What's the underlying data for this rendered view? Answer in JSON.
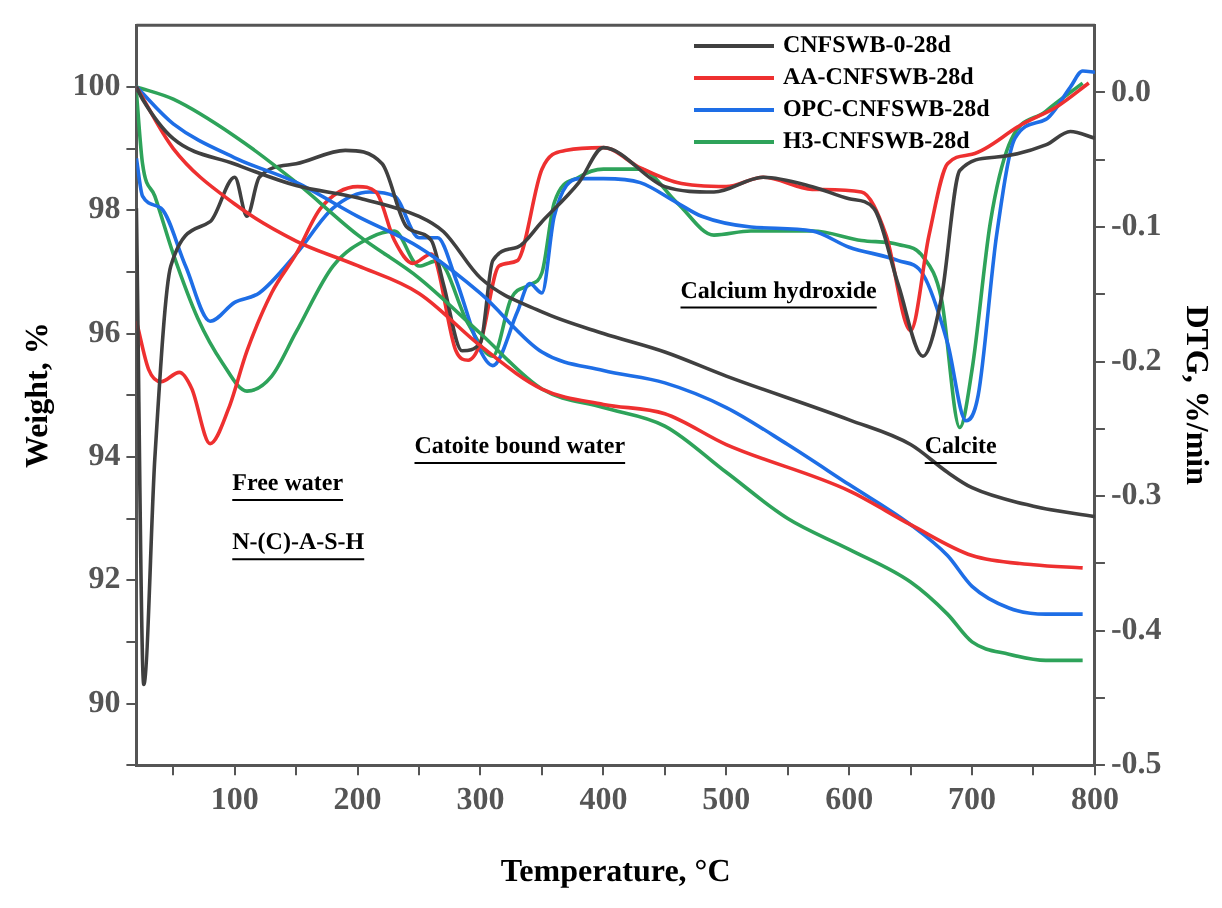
{
  "chart_data": {
    "type": "line",
    "xlabel": "Temperature, °C",
    "ylabel": "Weight, %",
    "y2label": "DTG, %/min",
    "xlim": [
      20,
      800
    ],
    "xticks": [
      {
        "value": 50,
        "label": null
      },
      100,
      {
        "value": 150,
        "label": null
      },
      200,
      {
        "value": 250,
        "label": null
      },
      300,
      {
        "value": 350,
        "label": null
      },
      400,
      {
        "value": 450,
        "label": null
      },
      500,
      {
        "value": 550,
        "label": null
      },
      600,
      {
        "value": 650,
        "label": null
      },
      700,
      {
        "value": 750,
        "label": null
      },
      800
    ],
    "ylim": [
      89,
      101
    ],
    "yticks": [
      {
        "value": 89,
        "label": null
      },
      90,
      {
        "value": 91,
        "label": null
      },
      92,
      {
        "value": 93,
        "label": null
      },
      94,
      {
        "value": 95,
        "label": null
      },
      96,
      {
        "value": 97,
        "label": null
      },
      98,
      {
        "value": 99,
        "label": null
      },
      100
    ],
    "y2lim": [
      -0.5,
      0.05
    ],
    "y2ticks": [
      {
        "value": -0.5,
        "label": "-0.5"
      },
      {
        "value": -0.45,
        "label": null
      },
      {
        "value": -0.4,
        "label": "-0.4"
      },
      {
        "value": -0.35,
        "label": null
      },
      {
        "value": -0.3,
        "label": "-0.3"
      },
      {
        "value": -0.25,
        "label": null
      },
      {
        "value": -0.2,
        "label": "-0.2"
      },
      {
        "value": -0.15,
        "label": null
      },
      {
        "value": -0.1,
        "label": "-0.1"
      },
      {
        "value": -0.05,
        "label": null
      },
      {
        "value": 0,
        "label": "0.0"
      }
    ],
    "grid": false,
    "legend": "top right",
    "marker": "none",
    "line_style": "solid",
    "series": [
      {
        "name": "CNFSWB-0-28d",
        "color": "#404040",
        "x": [
          20,
          25,
          50,
          100,
          150,
          200,
          250,
          270,
          300,
          350,
          400,
          450,
          500,
          600,
          650,
          680,
          700,
          750,
          800
        ],
        "values": [
          100,
          99.8,
          99.16,
          98.75,
          98.4,
          98.2,
          97.9,
          97.65,
          96.9,
          96.35,
          96.0,
          95.7,
          95.31,
          94.6,
          94.2,
          93.75,
          93.5,
          93.2,
          93.03
        ]
      },
      {
        "name": "AA-CNFSWB-28d",
        "color": "#ee3030",
        "x": [
          20,
          50,
          100,
          150,
          200,
          250,
          300,
          350,
          400,
          450,
          500,
          600,
          650,
          700,
          750,
          790
        ],
        "values": [
          100,
          99.0,
          98.1,
          97.5,
          97.1,
          96.65,
          95.8,
          95.1,
          94.85,
          94.7,
          94.2,
          93.45,
          92.9,
          92.4,
          92.25,
          92.2
        ]
      },
      {
        "name": "OPC-CNFSWB-28d",
        "color": "#1e6ee6",
        "x": [
          20,
          50,
          100,
          150,
          200,
          250,
          300,
          350,
          400,
          450,
          500,
          550,
          600,
          650,
          680,
          700,
          730,
          760,
          790
        ],
        "values": [
          100,
          99.4,
          98.85,
          98.45,
          97.9,
          97.4,
          96.65,
          95.7,
          95.4,
          95.2,
          94.8,
          94.2,
          93.55,
          92.9,
          92.4,
          91.9,
          91.55,
          91.45,
          91.45
        ]
      },
      {
        "name": "H3-CNFSWB-28d",
        "color": "#2ea35a",
        "x": [
          20,
          50,
          100,
          150,
          200,
          250,
          300,
          350,
          400,
          450,
          500,
          550,
          600,
          650,
          680,
          700,
          730,
          760,
          790
        ],
        "values": [
          100,
          99.8,
          99.2,
          98.45,
          97.6,
          96.9,
          96.0,
          95.1,
          94.8,
          94.5,
          93.75,
          93.0,
          92.5,
          91.97,
          91.45,
          91.0,
          90.8,
          90.7,
          90.7
        ]
      },
      {
        "color": "#404040",
        "axis": "y2",
        "x": [
          20,
          26,
          35,
          48,
          80,
          100,
          110,
          120,
          150,
          190,
          220,
          240,
          260,
          270,
          285,
          300,
          310,
          330,
          350,
          380,
          400,
          450,
          490,
          530,
          570,
          600,
          620,
          640,
          660,
          675,
          690,
          720,
          760,
          780,
          800
        ],
        "values": [
          -0.086,
          -0.44,
          -0.272,
          -0.129,
          -0.096,
          -0.063,
          -0.092,
          -0.063,
          -0.053,
          -0.043,
          -0.053,
          -0.1,
          -0.11,
          -0.143,
          -0.192,
          -0.186,
          -0.125,
          -0.115,
          -0.096,
          -0.067,
          -0.041,
          -0.07,
          -0.074,
          -0.063,
          -0.07,
          -0.079,
          -0.086,
          -0.143,
          -0.196,
          -0.153,
          -0.058,
          -0.048,
          -0.039,
          -0.029,
          -0.034
        ]
      },
      {
        "color": "#ee3030",
        "axis": "y2",
        "x": [
          20,
          30,
          40,
          55,
          65,
          80,
          95,
          110,
          130,
          150,
          170,
          200,
          215,
          230,
          245,
          260,
          280,
          290,
          300,
          315,
          330,
          350,
          370,
          400,
          430,
          460,
          500,
          530,
          570,
          610,
          630,
          650,
          665,
          680,
          700,
          740,
          770,
          795
        ],
        "values": [
          -0.17,
          -0.206,
          -0.215,
          -0.208,
          -0.22,
          -0.261,
          -0.235,
          -0.192,
          -0.149,
          -0.12,
          -0.086,
          -0.07,
          -0.074,
          -0.11,
          -0.127,
          -0.12,
          -0.192,
          -0.199,
          -0.186,
          -0.129,
          -0.125,
          -0.057,
          -0.043,
          -0.041,
          -0.056,
          -0.067,
          -0.07,
          -0.063,
          -0.072,
          -0.074,
          -0.106,
          -0.177,
          -0.106,
          -0.053,
          -0.046,
          -0.024,
          -0.01,
          0.007
        ]
      },
      {
        "color": "#1e6ee6",
        "axis": "y2",
        "x": [
          20,
          25,
          40,
          60,
          80,
          100,
          120,
          150,
          180,
          210,
          230,
          250,
          265,
          280,
          300,
          310,
          330,
          340,
          350,
          360,
          380,
          400,
          430,
          460,
          480,
          520,
          570,
          600,
          640,
          660,
          680,
          695,
          705,
          720,
          735,
          760,
          780,
          790,
          800
        ],
        "values": [
          -0.049,
          -0.077,
          -0.086,
          -0.129,
          -0.17,
          -0.156,
          -0.149,
          -0.12,
          -0.086,
          -0.074,
          -0.077,
          -0.108,
          -0.108,
          -0.139,
          -0.192,
          -0.203,
          -0.163,
          -0.142,
          -0.149,
          -0.092,
          -0.064,
          -0.064,
          -0.067,
          -0.082,
          -0.092,
          -0.1,
          -0.103,
          -0.115,
          -0.125,
          -0.135,
          -0.186,
          -0.244,
          -0.225,
          -0.106,
          -0.034,
          -0.02,
          0.004,
          0.016,
          0.015
        ]
      },
      {
        "color": "#2ea35a",
        "axis": "y2",
        "x": [
          20,
          25,
          35,
          50,
          70,
          90,
          110,
          130,
          150,
          180,
          210,
          230,
          250,
          265,
          290,
          310,
          325,
          340,
          350,
          360,
          380,
          400,
          430,
          460,
          490,
          520,
          570,
          610,
          640,
          660,
          675,
          690,
          700,
          715,
          730,
          760,
          790
        ],
        "values": [
          0.0,
          -0.053,
          -0.077,
          -0.12,
          -0.168,
          -0.201,
          -0.222,
          -0.211,
          -0.178,
          -0.129,
          -0.108,
          -0.103,
          -0.129,
          -0.125,
          -0.172,
          -0.196,
          -0.153,
          -0.143,
          -0.134,
          -0.082,
          -0.063,
          -0.057,
          -0.057,
          -0.082,
          -0.106,
          -0.103,
          -0.103,
          -0.11,
          -0.113,
          -0.122,
          -0.153,
          -0.249,
          -0.206,
          -0.096,
          -0.039,
          -0.014,
          0.007
        ]
      }
    ],
    "annotations": [
      "Free water",
      "N-(C)-A-S-H",
      "Catoite bound water",
      "Calcium hydroxide",
      "Calcite"
    ]
  }
}
